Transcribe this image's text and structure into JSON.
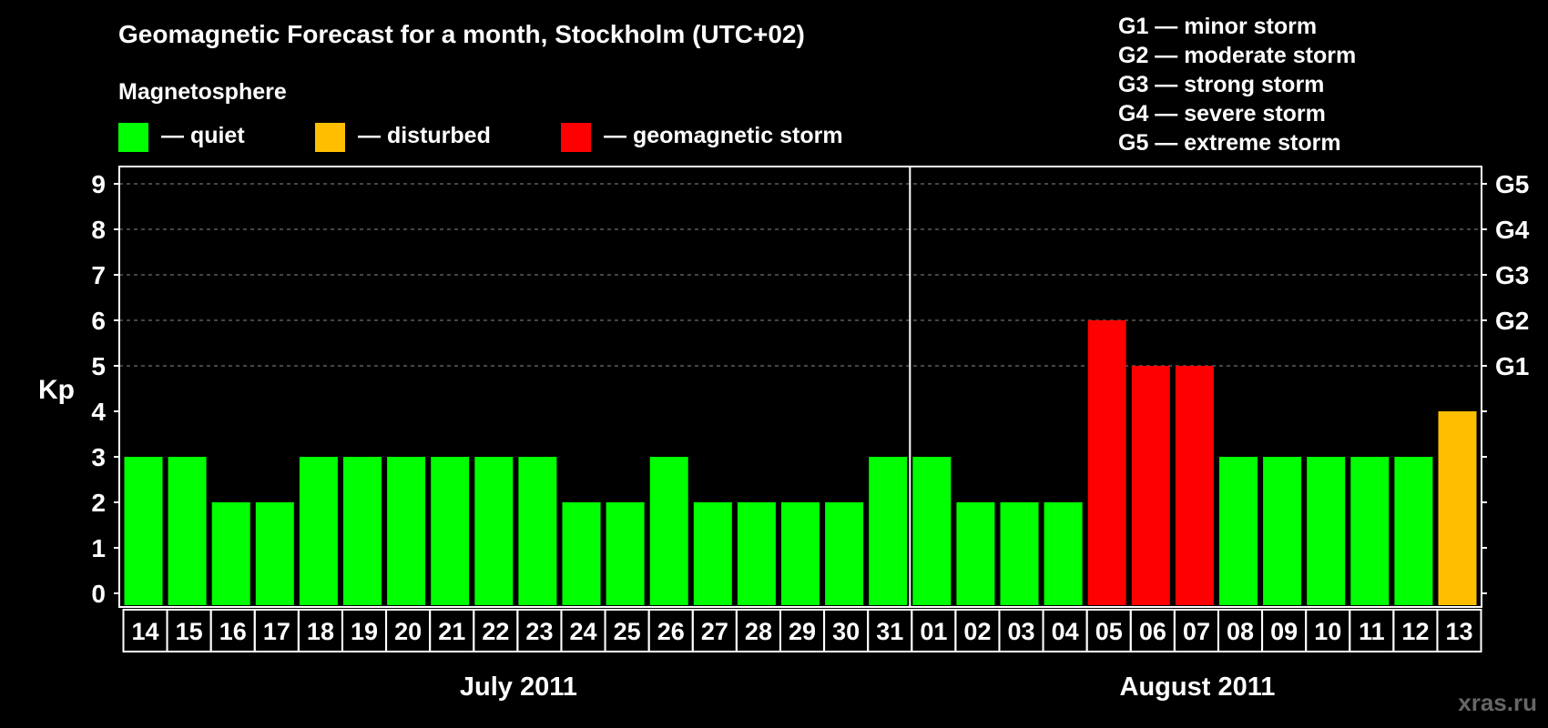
{
  "chart_data": {
    "type": "bar",
    "title": "Geomagnetic Forecast for a month, Stockholm (UTC+02)",
    "ylabel": "Kp",
    "ylim": [
      0,
      9
    ],
    "yticks": [
      "0",
      "1",
      "2",
      "3",
      "4",
      "5",
      "6",
      "7",
      "8",
      "9"
    ],
    "grid": true,
    "categories": [
      "14",
      "15",
      "16",
      "17",
      "18",
      "19",
      "20",
      "21",
      "22",
      "23",
      "24",
      "25",
      "26",
      "27",
      "28",
      "29",
      "30",
      "31",
      "01",
      "02",
      "03",
      "04",
      "05",
      "06",
      "07",
      "08",
      "09",
      "10",
      "11",
      "12",
      "13"
    ],
    "values": [
      3,
      3,
      2,
      2,
      3,
      3,
      3,
      3,
      3,
      3,
      2,
      2,
      3,
      2,
      2,
      2,
      2,
      3,
      3,
      2,
      2,
      2,
      6,
      5,
      5,
      3,
      3,
      3,
      3,
      3,
      4
    ],
    "levels": [
      "quiet",
      "quiet",
      "quiet",
      "quiet",
      "quiet",
      "quiet",
      "quiet",
      "quiet",
      "quiet",
      "quiet",
      "quiet",
      "quiet",
      "quiet",
      "quiet",
      "quiet",
      "quiet",
      "quiet",
      "quiet",
      "quiet",
      "quiet",
      "quiet",
      "quiet",
      "storm",
      "storm",
      "storm",
      "quiet",
      "quiet",
      "quiet",
      "quiet",
      "quiet",
      "disturbed"
    ],
    "months": [
      {
        "label": "July 2011",
        "count": 18
      },
      {
        "label": "August 2011",
        "count": 13
      }
    ],
    "storm_levels": [
      {
        "kp": 5,
        "label": "G1"
      },
      {
        "kp": 6,
        "label": "G2"
      },
      {
        "kp": 7,
        "label": "G3"
      },
      {
        "kp": 8,
        "label": "G4"
      },
      {
        "kp": 9,
        "label": "G5"
      }
    ],
    "legend": {
      "heading": "Magnetosphere",
      "entries": [
        {
          "key": "quiet",
          "label": "— quiet",
          "color": "#00ff00"
        },
        {
          "key": "disturbed",
          "label": "— disturbed",
          "color": "#ffbf00"
        },
        {
          "key": "storm",
          "label": "— geomagnetic storm",
          "color": "#ff0000"
        }
      ]
    },
    "storm_scale": [
      "G1 — minor storm",
      "G2 — moderate storm",
      "G3 — strong storm",
      "G4 — severe storm",
      "G5 — extreme storm"
    ]
  },
  "watermark": "xras.ru"
}
